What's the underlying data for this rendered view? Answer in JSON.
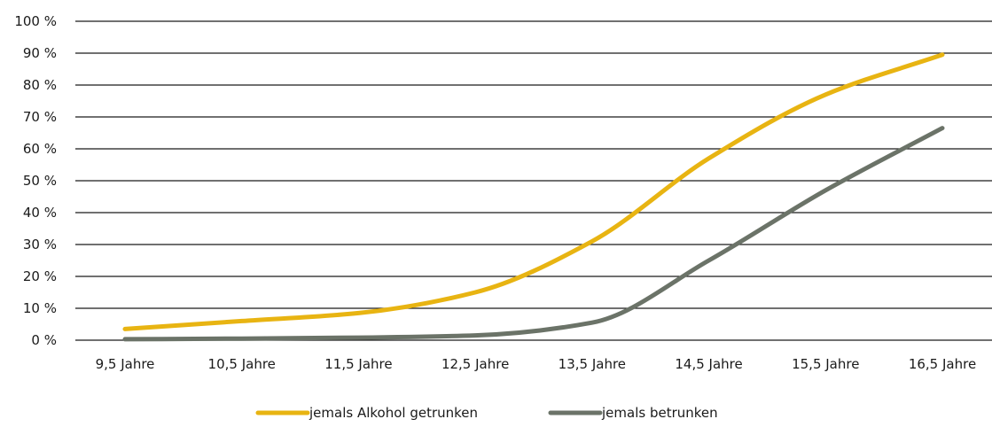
{
  "chart_data": {
    "type": "line",
    "title": "",
    "xlabel": "",
    "ylabel": "",
    "categories": [
      "9,5 Jahre",
      "10,5 Jahre",
      "11,5 Jahre",
      "12,5 Jahre",
      "13,5 Jahre",
      "14,5 Jahre",
      "15,5 Jahre",
      "16,5 Jahre"
    ],
    "y_ticks": [
      "0 %",
      "10 %",
      "20 %",
      "30 %",
      "40 %",
      "50 %",
      "60 %",
      "70 %",
      "80 %",
      "90 %",
      "100 %"
    ],
    "ylim": [
      0,
      100
    ],
    "grid": true,
    "legend_position": "bottom-center",
    "series": [
      {
        "name": "jemals Alkohol getrunken",
        "color": "#E8B412",
        "values": [
          3.5,
          6,
          8.5,
          15,
          31,
          57,
          77,
          89.5
        ]
      },
      {
        "name": "jemals betrunken",
        "color": "#6B7368",
        "values": [
          0.3,
          0.5,
          0.8,
          1.5,
          5.5,
          25,
          47,
          66.5
        ]
      }
    ]
  }
}
